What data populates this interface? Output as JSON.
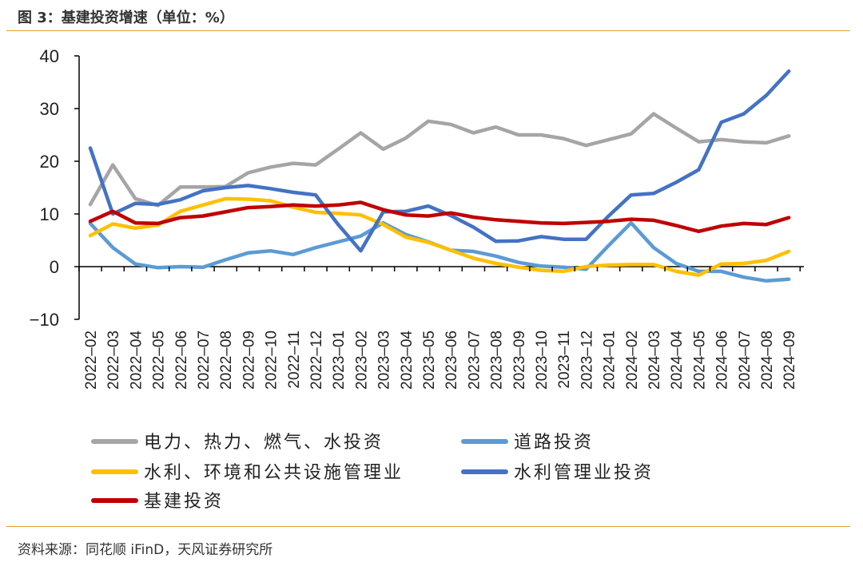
{
  "header": {
    "title": "图 3：基建投资增速（单位：%）"
  },
  "footer": {
    "source": "资料来源：同花顺 iFinD，天风证券研究所"
  },
  "chart_data": {
    "type": "line",
    "title": "图 3：基建投资增速（单位：%）",
    "xlabel": "",
    "ylabel": "",
    "ylim": [
      -10,
      40
    ],
    "yticks": [
      -10,
      0,
      10,
      20,
      30,
      40
    ],
    "grid": false,
    "legend_position": "bottom",
    "categories": [
      "2022–02",
      "2022–03",
      "2022–04",
      "2022–05",
      "2022–06",
      "2022–07",
      "2022–08",
      "2022–09",
      "2022–10",
      "2022–11",
      "2022–12",
      "2023–01",
      "2023–02",
      "2023–03",
      "2023–04",
      "2023–05",
      "2023–06",
      "2023–07",
      "2023–08",
      "2023–09",
      "2023–10",
      "2023–11",
      "2023–12",
      "2024–01",
      "2024–02",
      "2024–03",
      "2024–04",
      "2024–05",
      "2024–06",
      "2024–07",
      "2024–08",
      "2024–09"
    ],
    "series": [
      {
        "name": "电力、热力、燃气、水投资",
        "color": "#A5A5A5",
        "values": [
          11.8,
          19.3,
          12.9,
          11.6,
          15.1,
          15.1,
          15.2,
          17.8,
          18.9,
          19.6,
          19.3,
          22.3,
          25.4,
          22.3,
          24.4,
          27.6,
          27.0,
          25.4,
          26.5,
          25.0,
          25.0,
          24.3,
          23.0,
          24.1,
          25.2,
          29.0,
          26.3,
          23.7,
          24.1,
          23.7,
          23.5,
          24.8
        ]
      },
      {
        "name": "道路投资",
        "color": "#5B9BD5",
        "values": [
          8.2,
          3.6,
          0.5,
          -0.2,
          0.0,
          -0.1,
          1.3,
          2.6,
          3.0,
          2.3,
          3.6,
          4.7,
          5.8,
          8.3,
          6.1,
          4.7,
          3.1,
          2.9,
          2.0,
          0.8,
          0.1,
          -0.1,
          -0.5,
          4.0,
          8.3,
          3.6,
          0.6,
          -0.9,
          -0.9,
          -2.0,
          -2.7,
          -2.4
        ]
      },
      {
        "name": "水利、环境和公共设施管理业",
        "color": "#FFC000",
        "values": [
          5.9,
          8.1,
          7.3,
          7.9,
          10.5,
          11.7,
          12.9,
          12.8,
          12.5,
          11.3,
          10.3,
          10.1,
          9.8,
          8.0,
          5.6,
          4.6,
          3.1,
          1.6,
          0.6,
          -0.1,
          -0.7,
          -0.9,
          0.0,
          0.3,
          0.4,
          0.4,
          -0.9,
          -1.6,
          0.5,
          0.6,
          1.2,
          2.9
        ]
      },
      {
        "name": "水利管理业投资",
        "color": "#4472C4",
        "values": [
          22.5,
          10.0,
          12.0,
          11.8,
          12.7,
          14.4,
          15.0,
          15.4,
          14.8,
          14.1,
          13.6,
          8.0,
          3.0,
          10.4,
          10.5,
          11.5,
          9.7,
          7.5,
          4.8,
          4.9,
          5.7,
          5.2,
          5.2,
          9.6,
          13.6,
          13.9,
          16.0,
          18.4,
          27.4,
          29.0,
          32.5,
          37.1
        ]
      },
      {
        "name": "基建投资",
        "color": "#C00000",
        "values": [
          8.6,
          10.5,
          8.3,
          8.2,
          9.3,
          9.6,
          10.4,
          11.2,
          11.4,
          11.7,
          11.5,
          11.7,
          12.2,
          10.8,
          9.8,
          9.6,
          10.2,
          9.4,
          8.9,
          8.6,
          8.3,
          8.2,
          8.4,
          8.6,
          9.0,
          8.8,
          7.8,
          6.7,
          7.7,
          8.2,
          8.0,
          9.3
        ]
      }
    ]
  }
}
